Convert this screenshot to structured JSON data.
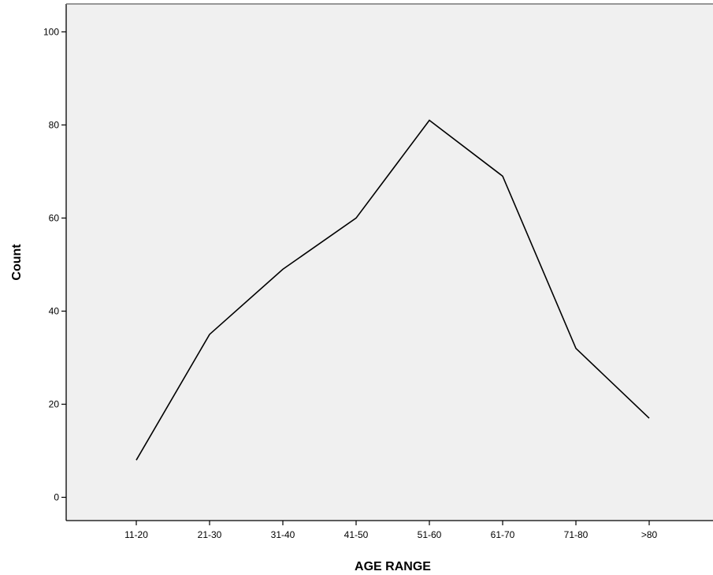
{
  "chart_data": {
    "type": "line",
    "title": "",
    "xlabel": "AGE RANGE",
    "ylabel": "Count",
    "categories": [
      "11-20",
      "21-30",
      "31-40",
      "41-50",
      "51-60",
      "61-70",
      "71-80",
      ">80"
    ],
    "series": [
      {
        "values": [
          8,
          35,
          49,
          60,
          81,
          69,
          32,
          17
        ]
      }
    ],
    "ylim": [
      -5,
      106
    ],
    "yticks": [
      0,
      20,
      40,
      60,
      80,
      100
    ],
    "grid": false,
    "legend": "none",
    "colors": {
      "plot_background": "#f0f0f0",
      "line": "#000000",
      "frame": "#000000"
    }
  }
}
